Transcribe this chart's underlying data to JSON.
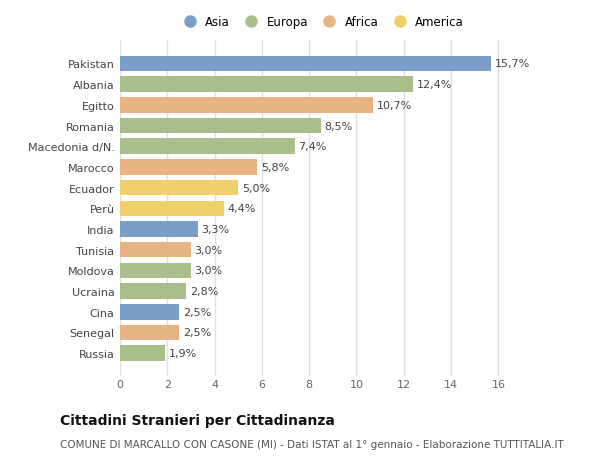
{
  "countries": [
    "Russia",
    "Senegal",
    "Cina",
    "Ucraina",
    "Moldova",
    "Tunisia",
    "India",
    "Perù",
    "Ecuador",
    "Marocco",
    "Macedonia d/N.",
    "Romania",
    "Egitto",
    "Albania",
    "Pakistan"
  ],
  "values": [
    1.9,
    2.5,
    2.5,
    2.8,
    3.0,
    3.0,
    3.3,
    4.4,
    5.0,
    5.8,
    7.4,
    8.5,
    10.7,
    12.4,
    15.7
  ],
  "labels": [
    "1,9%",
    "2,5%",
    "2,5%",
    "2,8%",
    "3,0%",
    "3,0%",
    "3,3%",
    "4,4%",
    "5,0%",
    "5,8%",
    "7,4%",
    "8,5%",
    "10,7%",
    "12,4%",
    "15,7%"
  ],
  "continent": [
    "Europa",
    "Africa",
    "Asia",
    "Europa",
    "Europa",
    "Africa",
    "Asia",
    "America",
    "America",
    "Africa",
    "Europa",
    "Europa",
    "Africa",
    "Europa",
    "Asia"
  ],
  "colors": {
    "Asia": "#7b9ec8",
    "Europa": "#a8bf8c",
    "Africa": "#e8b484",
    "America": "#f0d06a"
  },
  "legend_order": [
    "Asia",
    "Europa",
    "Africa",
    "America"
  ],
  "xlim": [
    0,
    17
  ],
  "xticks": [
    0,
    2,
    4,
    6,
    8,
    10,
    12,
    14,
    16
  ],
  "title": "Cittadini Stranieri per Cittadinanza",
  "subtitle": "COMUNE DI MARCALLO CON CASONE (MI) - Dati ISTAT al 1° gennaio - Elaborazione TUTTITALIA.IT",
  "background_color": "#ffffff",
  "grid_color": "#e0e0e0",
  "bar_height": 0.75,
  "label_fontsize": 8,
  "tick_fontsize": 8,
  "title_fontsize": 10,
  "subtitle_fontsize": 7.5
}
